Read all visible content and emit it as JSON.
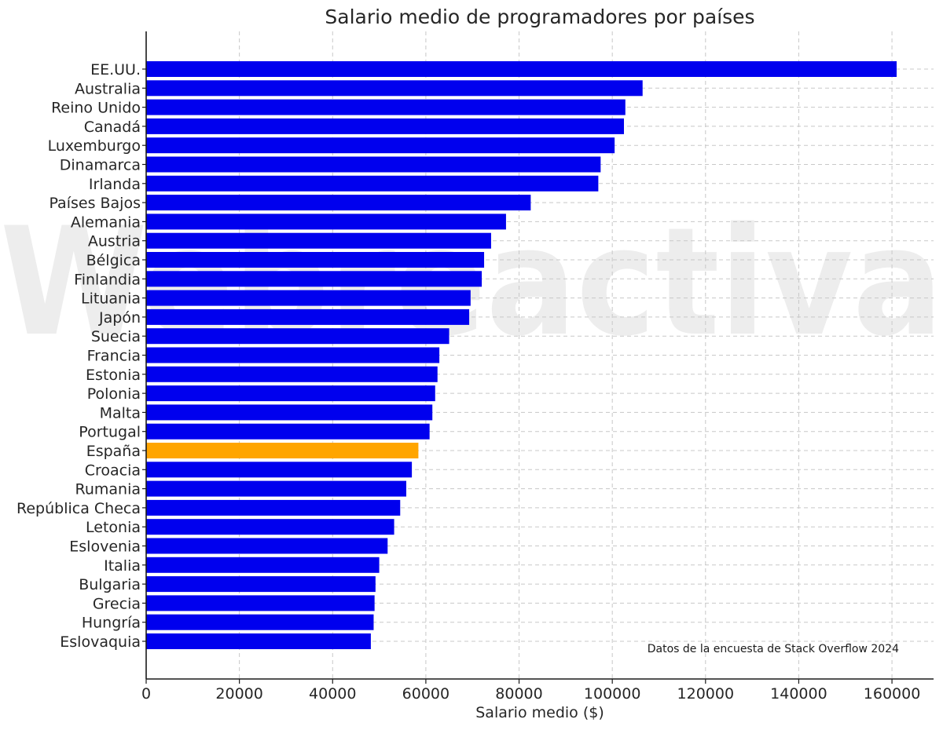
{
  "chart_data": {
    "type": "bar",
    "orientation": "horizontal",
    "title": "Salario medio de programadores por países",
    "xlabel": "Salario medio ($)",
    "ylabel": "",
    "xlim": [
      0,
      170000
    ],
    "xticks": [
      0,
      20000,
      40000,
      60000,
      80000,
      100000,
      120000,
      140000,
      160000
    ],
    "grid": true,
    "annotation": "Datos de la encuesta de Stack Overflow 2024",
    "watermark": "Webreactiva",
    "categories": [
      "EE.UU.",
      "Australia",
      "Reino Unido",
      "Canadá",
      "Luxemburgo",
      "Dinamarca",
      "Irlanda",
      "Países Bajos",
      "Alemania",
      "Austria",
      "Bélgica",
      "Finlandia",
      "Lituania",
      "Japón",
      "Suecia",
      "Francia",
      "Estonia",
      "Polonia",
      "Malta",
      "Portugal",
      "España",
      "Croacia",
      "Rumania",
      "República Checa",
      "Letonia",
      "Eslovenia",
      "Italia",
      "Bulgaria",
      "Grecia",
      "Hungría",
      "Eslovaquia"
    ],
    "values": [
      161000,
      106500,
      102800,
      102500,
      100500,
      97500,
      97000,
      82500,
      77200,
      74000,
      72500,
      72000,
      69600,
      69300,
      65000,
      62900,
      62500,
      62000,
      61400,
      60800,
      58400,
      57000,
      55800,
      54500,
      53200,
      51800,
      50000,
      49200,
      49000,
      48800,
      48200
    ],
    "colors": {
      "default": "#0000ee",
      "highlight": "#ffa500",
      "highlight_category": "España"
    }
  }
}
